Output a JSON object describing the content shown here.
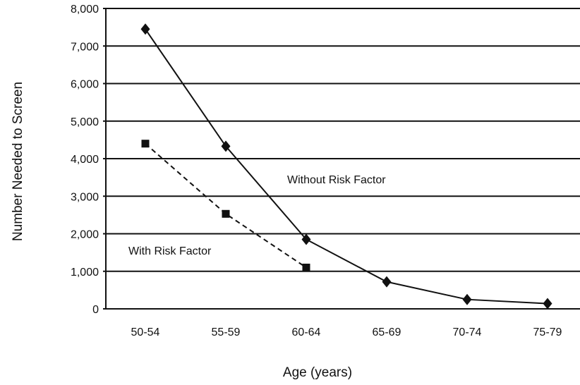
{
  "colors": {
    "background": "#ffffff",
    "axis": "#111111",
    "gridline": "#111111",
    "series": "#111111"
  },
  "chart_data": {
    "type": "line",
    "title": "",
    "xlabel": "Age (years)",
    "ylabel": "Number Needed to Screen",
    "categories": [
      "50-54",
      "55-59",
      "60-64",
      "65-69",
      "70-74",
      "75-79"
    ],
    "ylim": [
      0,
      8000
    ],
    "y_ticks": [
      0,
      1000,
      2000,
      3000,
      4000,
      5000,
      6000,
      7000,
      8000
    ],
    "y_tick_labels": [
      "0",
      "1,000",
      "2,000",
      "3,000",
      "4,000",
      "5,000",
      "6,000",
      "7,000",
      "8,000"
    ],
    "grid": true,
    "legend": "none",
    "series": [
      {
        "name": "Without Risk Factor",
        "marker": "diamond",
        "line_style": "solid",
        "values": [
          7450,
          4330,
          1850,
          720,
          250,
          140
        ]
      },
      {
        "name": "With Risk Factor",
        "marker": "square",
        "line_style": "dashed",
        "values": [
          4400,
          2530,
          1100,
          null,
          null,
          null
        ]
      }
    ]
  }
}
